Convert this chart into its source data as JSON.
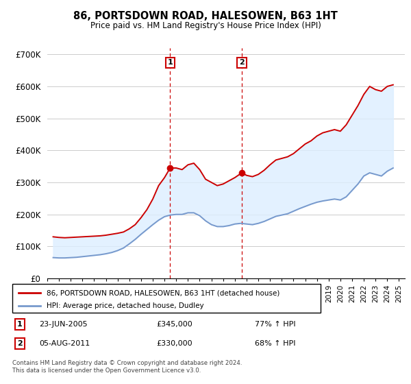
{
  "title": "86, PORTSDOWN ROAD, HALESOWEN, B63 1HT",
  "subtitle": "Price paid vs. HM Land Registry's House Price Index (HPI)",
  "legend_line1": "86, PORTSDOWN ROAD, HALESOWEN, B63 1HT (detached house)",
  "legend_line2": "HPI: Average price, detached house, Dudley",
  "annotation1_date": "23-JUN-2005",
  "annotation1_price": "£345,000",
  "annotation1_hpi": "77% ↑ HPI",
  "annotation1_year": 2005.48,
  "annotation1_value": 345000,
  "annotation2_date": "05-AUG-2011",
  "annotation2_price": "£330,000",
  "annotation2_hpi": "68% ↑ HPI",
  "annotation2_year": 2011.6,
  "annotation2_value": 330000,
  "red_line_color": "#cc0000",
  "blue_line_color": "#7799cc",
  "shade_color": "#ddeeff",
  "grid_color": "#cccccc",
  "annotation_line_color": "#cc0000",
  "footer": "Contains HM Land Registry data © Crown copyright and database right 2024.\nThis data is licensed under the Open Government Licence v3.0.",
  "ylim": [
    0,
    720000
  ],
  "yticks": [
    0,
    100000,
    200000,
    300000,
    400000,
    500000,
    600000,
    700000
  ],
  "ytick_labels": [
    "£0",
    "£100K",
    "£200K",
    "£300K",
    "£400K",
    "£500K",
    "£600K",
    "£700K"
  ],
  "red_years": [
    1995.5,
    1996.0,
    1996.5,
    1997.0,
    1997.5,
    1998.0,
    1998.5,
    1999.0,
    1999.5,
    2000.0,
    2000.5,
    2001.0,
    2001.5,
    2002.0,
    2002.5,
    2003.0,
    2003.5,
    2004.0,
    2004.5,
    2005.0,
    2005.48,
    2006.0,
    2006.5,
    2007.0,
    2007.5,
    2008.0,
    2008.5,
    2009.0,
    2009.5,
    2010.0,
    2010.5,
    2011.0,
    2011.6,
    2012.0,
    2012.5,
    2013.0,
    2013.5,
    2014.0,
    2014.5,
    2015.0,
    2015.5,
    2016.0,
    2016.5,
    2017.0,
    2017.5,
    2018.0,
    2018.5,
    2019.0,
    2019.5,
    2020.0,
    2020.5,
    2021.0,
    2021.5,
    2022.0,
    2022.5,
    2023.0,
    2023.5,
    2024.0,
    2024.5
  ],
  "red_values": [
    130000,
    128000,
    127000,
    128000,
    129000,
    130000,
    131000,
    132000,
    133000,
    135000,
    138000,
    141000,
    145000,
    155000,
    168000,
    190000,
    215000,
    248000,
    290000,
    315000,
    345000,
    345000,
    340000,
    355000,
    360000,
    340000,
    310000,
    300000,
    290000,
    295000,
    305000,
    315000,
    330000,
    322000,
    318000,
    325000,
    338000,
    355000,
    370000,
    375000,
    380000,
    390000,
    405000,
    420000,
    430000,
    445000,
    455000,
    460000,
    465000,
    460000,
    480000,
    510000,
    540000,
    575000,
    600000,
    590000,
    585000,
    600000,
    605000
  ],
  "blue_years": [
    1995.5,
    1996.0,
    1996.5,
    1997.0,
    1997.5,
    1998.0,
    1998.5,
    1999.0,
    1999.5,
    2000.0,
    2000.5,
    2001.0,
    2001.5,
    2002.0,
    2002.5,
    2003.0,
    2003.5,
    2004.0,
    2004.5,
    2005.0,
    2005.5,
    2006.0,
    2006.5,
    2007.0,
    2007.5,
    2008.0,
    2008.5,
    2009.0,
    2009.5,
    2010.0,
    2010.5,
    2011.0,
    2011.5,
    2012.0,
    2012.5,
    2013.0,
    2013.5,
    2014.0,
    2014.5,
    2015.0,
    2015.5,
    2016.0,
    2016.5,
    2017.0,
    2017.5,
    2018.0,
    2018.5,
    2019.0,
    2019.5,
    2020.0,
    2020.5,
    2021.0,
    2021.5,
    2022.0,
    2022.5,
    2023.0,
    2023.5,
    2024.0,
    2024.5
  ],
  "blue_values": [
    65000,
    64000,
    64000,
    65000,
    66000,
    68000,
    70000,
    72000,
    74000,
    77000,
    81000,
    87000,
    95000,
    108000,
    122000,
    138000,
    153000,
    168000,
    182000,
    193000,
    198000,
    200000,
    200000,
    205000,
    205000,
    196000,
    180000,
    168000,
    162000,
    162000,
    165000,
    170000,
    172000,
    170000,
    168000,
    172000,
    178000,
    186000,
    194000,
    198000,
    202000,
    210000,
    218000,
    225000,
    232000,
    238000,
    242000,
    245000,
    248000,
    245000,
    255000,
    275000,
    295000,
    320000,
    330000,
    325000,
    320000,
    335000,
    345000
  ]
}
